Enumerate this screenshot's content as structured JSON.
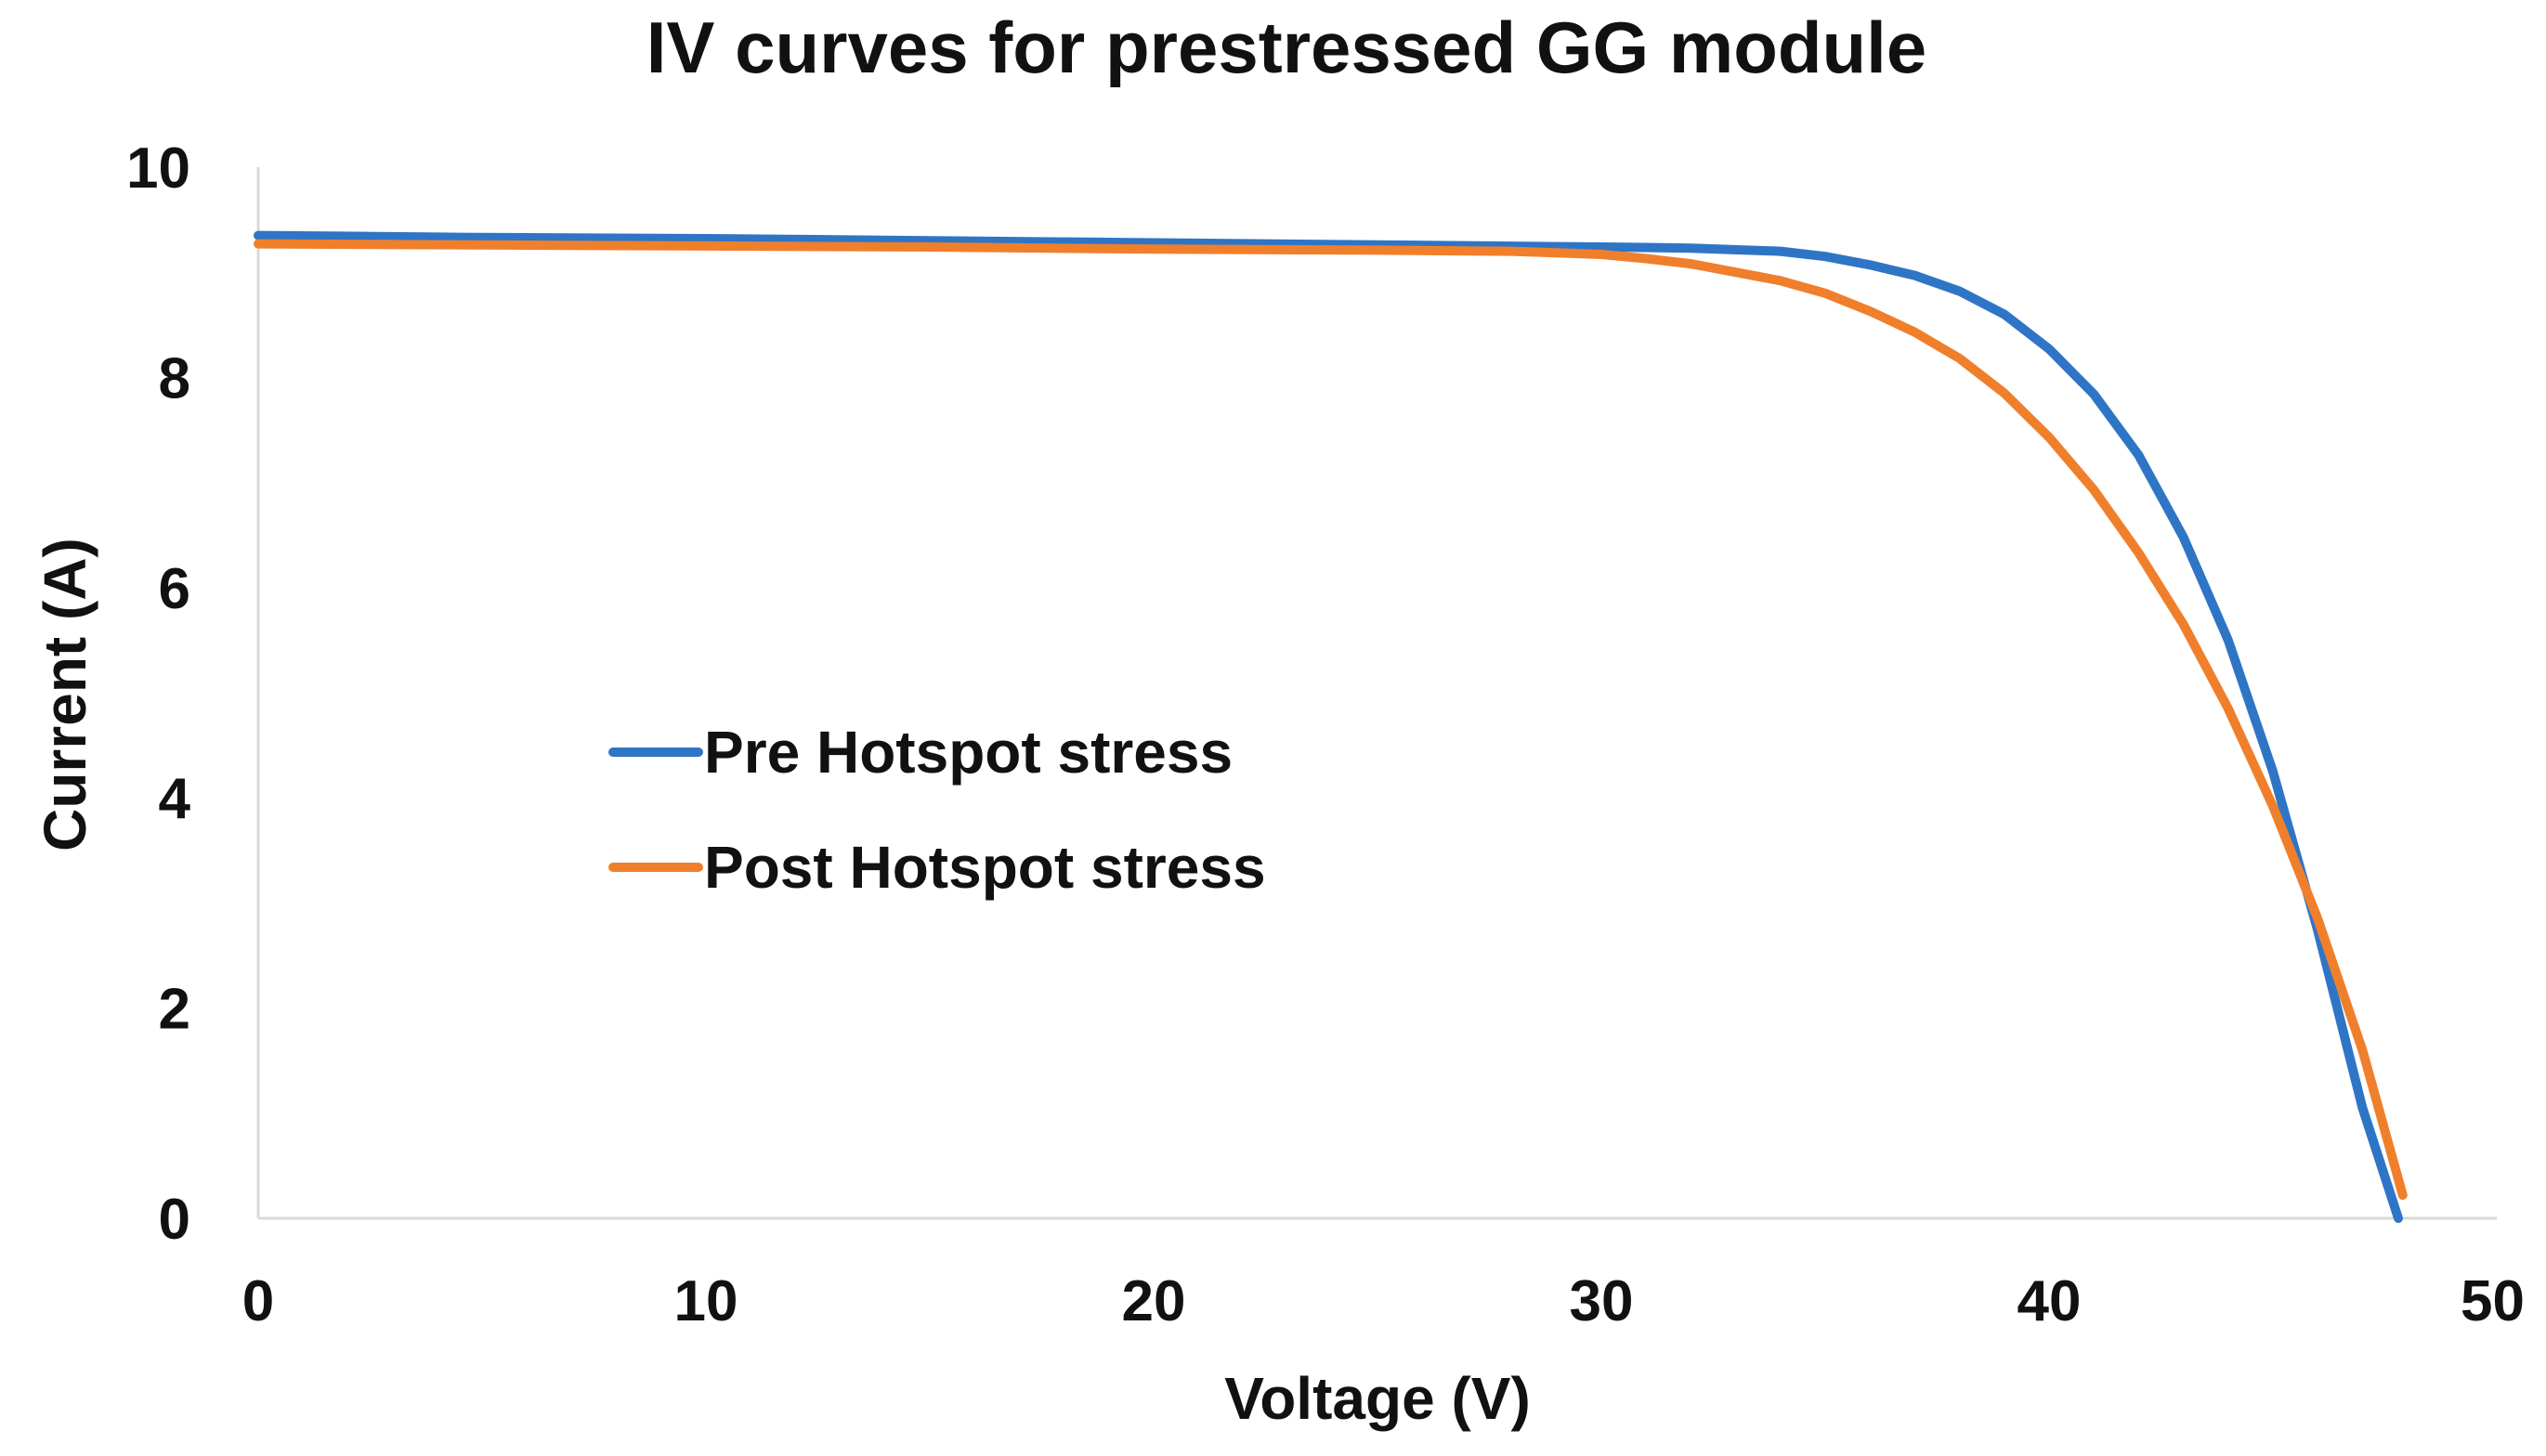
{
  "chart_data": {
    "type": "line",
    "title": "IV curves for prestressed GG module",
    "xlabel": "Voltage (V)",
    "ylabel": "Current (A)",
    "xlim": [
      0,
      50
    ],
    "ylim": [
      0,
      10
    ],
    "x_ticks": [
      0,
      10,
      20,
      30,
      40,
      50
    ],
    "y_ticks": [
      0,
      2,
      4,
      6,
      8,
      10
    ],
    "grid": false,
    "legend_position": "center-left",
    "series": [
      {
        "name": "Pre Hotspot stress",
        "color": "#2f75c6",
        "x": [
          0,
          5,
          10,
          15,
          20,
          25,
          30,
          32,
          34,
          35,
          36,
          37,
          38,
          39,
          40,
          41,
          42,
          43,
          44,
          45,
          46,
          47,
          47.8
        ],
        "y": [
          9.35,
          9.33,
          9.32,
          9.3,
          9.28,
          9.26,
          9.24,
          9.23,
          9.2,
          9.15,
          9.07,
          8.97,
          8.82,
          8.6,
          8.27,
          7.84,
          7.26,
          6.48,
          5.5,
          4.25,
          2.74,
          1.05,
          0.0
        ]
      },
      {
        "name": "Post Hotspot stress",
        "color": "#f07f2c",
        "x": [
          0,
          5,
          10,
          15,
          20,
          25,
          28,
          30,
          31,
          32,
          33,
          34,
          35,
          36,
          37,
          38,
          39,
          40,
          41,
          42,
          43,
          44,
          45,
          46,
          47,
          47.9
        ],
        "y": [
          9.27,
          9.26,
          9.25,
          9.24,
          9.22,
          9.21,
          9.2,
          9.17,
          9.13,
          9.08,
          9.0,
          8.92,
          8.8,
          8.63,
          8.43,
          8.18,
          7.85,
          7.43,
          6.93,
          6.33,
          5.65,
          4.85,
          3.92,
          2.85,
          1.6,
          0.22
        ]
      }
    ]
  }
}
